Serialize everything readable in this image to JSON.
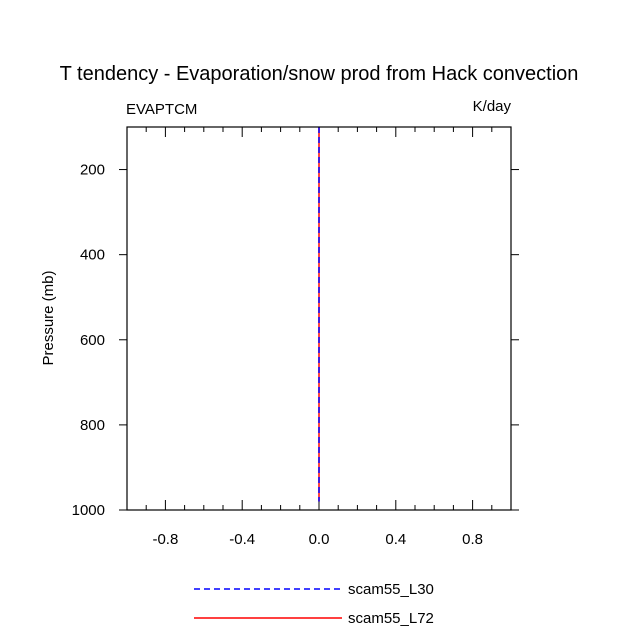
{
  "chart_data": {
    "type": "line",
    "title": "T tendency - Evaporation/snow prod from Hack convection",
    "subtitle_left": "EVAPTCM",
    "subtitle_right": "K/day",
    "xlabel": "",
    "ylabel": "Pressure (mb)",
    "xlim": [
      -1.0,
      1.0
    ],
    "ylim": [
      100,
      1000
    ],
    "y_inverted": true,
    "x_ticks": [
      -0.8,
      -0.4,
      0.0,
      0.4,
      0.8
    ],
    "x_tick_labels": [
      "-0.8",
      "-0.4",
      "0.0",
      "0.4",
      "0.8"
    ],
    "y_ticks": [
      200,
      400,
      600,
      800,
      1000
    ],
    "y_tick_labels": [
      "200",
      "400",
      "600",
      "800",
      "1000"
    ],
    "grid": false,
    "legend_position": "bottom-center",
    "series": [
      {
        "name": "scam55_L72",
        "color": "#ff0000",
        "dash": "solid",
        "points": [
          {
            "x": 0.0,
            "y": 100
          },
          {
            "x": 0.0,
            "y": 300
          },
          {
            "x": 0.0,
            "y": 500
          },
          {
            "x": 0.0,
            "y": 700
          },
          {
            "x": 0.0,
            "y": 900
          },
          {
            "x": 0.0,
            "y": 980
          }
        ]
      },
      {
        "name": "scam55_L30",
        "color": "#0000ff",
        "dash": "dashed",
        "points": [
          {
            "x": 0.0,
            "y": 100
          },
          {
            "x": 0.0,
            "y": 300
          },
          {
            "x": 0.0,
            "y": 500
          },
          {
            "x": 0.0,
            "y": 700
          },
          {
            "x": 0.0,
            "y": 900
          },
          {
            "x": 0.0,
            "y": 980
          }
        ]
      }
    ],
    "legend": [
      {
        "name": "scam55_L30",
        "color": "#0000ff",
        "dash": "dashed"
      },
      {
        "name": "scam55_L72",
        "color": "#ff0000",
        "dash": "solid"
      }
    ]
  }
}
